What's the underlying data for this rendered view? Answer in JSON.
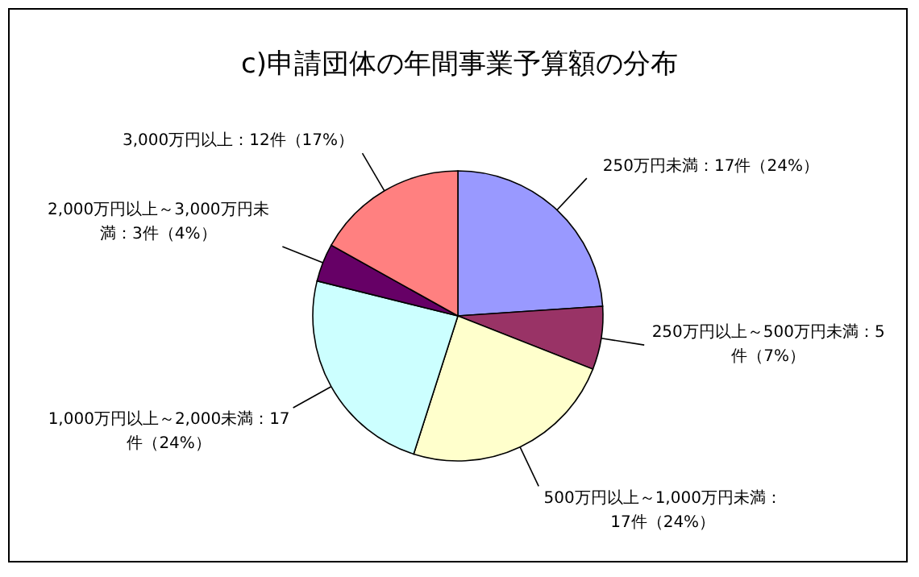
{
  "chart_data": {
    "type": "pie",
    "title": "c)申請団体の年間事業予算額の分布",
    "categories": [
      "250万円未満：17件（24%）",
      "250万円以上～500万円未満：5件（7%）",
      "500万円以上～1,000万円未満：17件（24%）",
      "1,000万円以上～2,000未満：17件（24%）",
      "2,000万円以上～3,000万円未満：3件（4%）",
      "3,000万円以上：12件（17%）"
    ],
    "values": [
      17,
      5,
      17,
      17,
      3,
      12
    ],
    "colors": [
      "#9999ff",
      "#993366",
      "#ffffcc",
      "#ccffff",
      "#660066",
      "#ff8080"
    ]
  }
}
